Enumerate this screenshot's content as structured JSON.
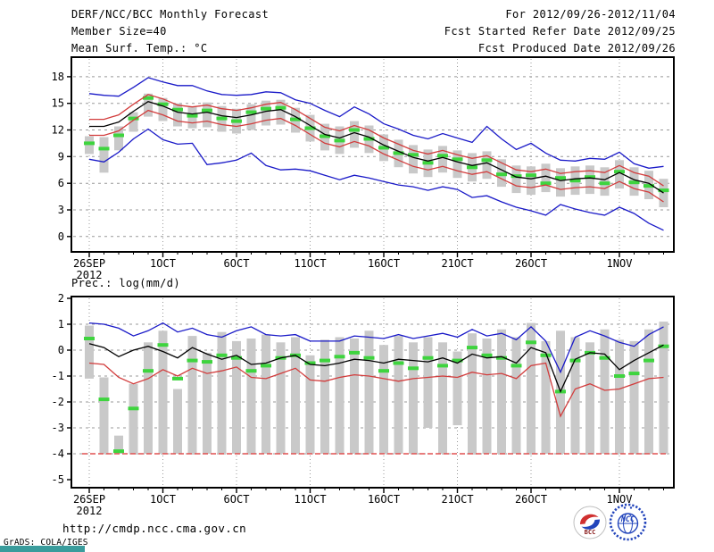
{
  "header": {
    "title": "DERF/NCC/BCC Monthly Forecast",
    "member_size": "Member Size=40",
    "valid_range": "For 2012/09/26-2012/11/04",
    "refer_date": "Fcst Started Refer Date 2012/09/25",
    "produced_date": "Fcst Produced Date 2012/09/26"
  },
  "footer": {
    "url": "http://cmdp.ncc.cma.gov.cn",
    "credit": "GrADS: COLA/IGES"
  },
  "logos": {
    "bcc": "BCC",
    "ncc": "NCC"
  },
  "colors": {
    "black_line": "#000000",
    "red_line": "#d23c3c",
    "blue_line": "#1a1ac8",
    "green_marker": "#3ed43e",
    "bar_gray": "#c9c9c9",
    "grid_gray": "#999999",
    "floor_red": "#e05050",
    "teal_bar": "#3a9c9c",
    "logo_red": "#d03030",
    "logo_blue": "#2244bb",
    "logo_dark_red": "#8b2020"
  },
  "chart_data": [
    {
      "type": "line",
      "name": "temperature",
      "title": "Mean Surf. Temp.: °C",
      "ylabel": "°C",
      "ylim": [
        0,
        18
      ],
      "yticks": [
        0,
        3,
        6,
        9,
        12,
        15,
        18
      ],
      "ygrid": [
        0,
        3,
        6,
        9,
        12,
        15,
        18
      ],
      "n_days": 40,
      "x_sub_label": "2012",
      "xticks": [
        {
          "day": 1,
          "label": "26SEP"
        },
        {
          "day": 6,
          "label": "1OCT"
        },
        {
          "day": 11,
          "label": "6OCT"
        },
        {
          "day": 16,
          "label": "11OCT"
        },
        {
          "day": 21,
          "label": "16OCT"
        },
        {
          "day": 26,
          "label": "21OCT"
        },
        {
          "day": 31,
          "label": "26OCT"
        },
        {
          "day": 37,
          "label": "1NOV"
        }
      ],
      "series": [
        {
          "name": "ensemble-min",
          "color": "blue_line",
          "values": [
            8.7,
            8.4,
            9.5,
            11.0,
            12.1,
            10.9,
            10.4,
            10.5,
            8.1,
            8.3,
            8.6,
            9.4,
            8.0,
            7.5,
            7.6,
            7.4,
            6.9,
            6.4,
            6.9,
            6.6,
            6.2,
            5.8,
            5.6,
            5.2,
            5.6,
            5.3,
            4.4,
            4.6,
            3.9,
            3.3,
            2.9,
            2.4,
            3.6,
            3.1,
            2.7,
            2.4,
            3.3,
            2.6,
            1.5,
            0.7
          ]
        },
        {
          "name": "ensemble-max",
          "color": "blue_line",
          "values": [
            16.1,
            15.9,
            15.8,
            16.8,
            17.9,
            17.4,
            17.0,
            17.0,
            16.4,
            16.0,
            15.9,
            16.0,
            16.3,
            16.2,
            15.4,
            15.0,
            14.2,
            13.5,
            14.6,
            13.8,
            12.7,
            12.1,
            11.4,
            11.0,
            11.6,
            11.1,
            10.6,
            12.4,
            11.0,
            9.8,
            10.5,
            9.4,
            8.6,
            8.5,
            8.8,
            8.7,
            9.5,
            8.2,
            7.7,
            7.9
          ]
        },
        {
          "name": "minus-spread",
          "color": "red_line",
          "values": [
            11.4,
            11.4,
            11.9,
            13.1,
            14.2,
            13.7,
            13.0,
            12.8,
            13.0,
            12.6,
            12.4,
            12.7,
            13.1,
            13.3,
            12.5,
            11.5,
            10.5,
            10.1,
            10.7,
            10.2,
            9.3,
            8.6,
            7.9,
            7.5,
            7.9,
            7.4,
            7.0,
            7.3,
            6.5,
            5.7,
            5.5,
            5.8,
            5.3,
            5.5,
            5.6,
            5.4,
            6.2,
            5.4,
            5.0,
            3.9
          ]
        },
        {
          "name": "plus-spread",
          "color": "red_line",
          "values": [
            13.2,
            13.2,
            13.7,
            14.9,
            16.0,
            15.5,
            14.8,
            14.6,
            14.8,
            14.4,
            14.2,
            14.5,
            14.9,
            15.1,
            14.3,
            13.3,
            12.3,
            11.9,
            12.5,
            12.0,
            11.1,
            10.4,
            9.7,
            9.3,
            9.7,
            9.2,
            8.8,
            9.1,
            8.3,
            7.5,
            7.3,
            7.6,
            7.1,
            7.3,
            7.4,
            7.2,
            8.0,
            7.2,
            6.8,
            5.7
          ]
        },
        {
          "name": "ensemble-mean",
          "color": "black_line",
          "values": [
            12.4,
            12.4,
            12.9,
            14.1,
            15.2,
            14.7,
            14.0,
            13.8,
            14.0,
            13.6,
            13.4,
            13.7,
            14.1,
            14.3,
            13.5,
            12.5,
            11.5,
            11.1,
            11.7,
            11.2,
            10.3,
            9.6,
            8.9,
            8.5,
            8.9,
            8.4,
            8.0,
            8.3,
            7.5,
            6.7,
            6.5,
            6.8,
            6.3,
            6.5,
            6.6,
            6.4,
            7.2,
            6.4,
            6.0,
            4.9
          ]
        }
      ],
      "spread_bars": {
        "high": [
          11.3,
          11.2,
          12.4,
          14.0,
          16.1,
          15.6,
          15.0,
          14.6,
          15.1,
          14.7,
          14.4,
          14.9,
          15.3,
          15.4,
          14.5,
          13.7,
          12.7,
          12.4,
          13.0,
          12.5,
          11.5,
          10.9,
          10.3,
          9.8,
          10.2,
          9.7,
          9.4,
          9.6,
          8.7,
          8.0,
          7.9,
          8.2,
          7.7,
          7.9,
          8.0,
          7.8,
          8.6,
          7.8,
          7.4,
          6.5
        ],
        "low": [
          9.3,
          7.2,
          9.7,
          11.8,
          13.5,
          13.0,
          12.4,
          12.2,
          12.3,
          11.8,
          11.6,
          12.0,
          12.5,
          12.6,
          11.7,
          10.7,
          9.7,
          9.3,
          10.0,
          9.4,
          8.5,
          7.8,
          7.1,
          6.7,
          7.2,
          6.6,
          6.2,
          6.5,
          5.6,
          4.9,
          4.7,
          5.0,
          4.5,
          4.7,
          4.8,
          4.6,
          5.4,
          4.6,
          4.2,
          3.3
        ]
      },
      "obs_markers": [
        10.5,
        9.9,
        11.4,
        13.3,
        15.6,
        14.9,
        14.3,
        13.6,
        14.2,
        13.3,
        13.0,
        14.0,
        14.4,
        14.5,
        13.2,
        12.2,
        11.3,
        10.8,
        12.0,
        11.0,
        10.0,
        9.4,
        9.2,
        8.3,
        9.1,
        8.7,
        7.8,
        8.6,
        7.0,
        6.8,
        6.9,
        6.0,
        6.6,
        6.3,
        6.7,
        6.0,
        7.3,
        6.1,
        5.7,
        5.2
      ],
      "floor_line_value": null
    },
    {
      "type": "line",
      "name": "precipitation",
      "title": "Prec.: log(mm/d)",
      "ylabel": "log(mm/d)",
      "ylim": [
        -5,
        2
      ],
      "yticks": [
        2,
        1,
        0,
        -1,
        -2,
        -3,
        -4,
        -5
      ],
      "ygrid": [
        1,
        0,
        -1,
        -2,
        -3,
        -4
      ],
      "n_days": 40,
      "x_sub_label": "2012",
      "xticks": [
        {
          "day": 1,
          "label": "26SEP"
        },
        {
          "day": 6,
          "label": "1OCT"
        },
        {
          "day": 11,
          "label": "6OCT"
        },
        {
          "day": 16,
          "label": "11OCT"
        },
        {
          "day": 21,
          "label": "16OCT"
        },
        {
          "day": 26,
          "label": "21OCT"
        },
        {
          "day": 31,
          "label": "26OCT"
        },
        {
          "day": 37,
          "label": "1NOV"
        }
      ],
      "series": [
        {
          "name": "ensemble-max",
          "color": "blue_line",
          "values": [
            1.05,
            1.0,
            0.85,
            0.55,
            0.75,
            1.05,
            0.7,
            0.85,
            0.6,
            0.5,
            0.75,
            0.9,
            0.6,
            0.55,
            0.6,
            0.35,
            0.35,
            0.35,
            0.55,
            0.5,
            0.45,
            0.6,
            0.45,
            0.55,
            0.65,
            0.5,
            0.8,
            0.55,
            0.65,
            0.4,
            0.9,
            0.35,
            -0.85,
            0.5,
            0.75,
            0.55,
            0.3,
            0.15,
            0.6,
            0.9
          ]
        },
        {
          "name": "minus-spread",
          "color": "red_line",
          "values": [
            -0.5,
            -0.55,
            -1.05,
            -1.3,
            -1.1,
            -0.75,
            -1.0,
            -0.7,
            -0.9,
            -0.8,
            -0.65,
            -1.05,
            -1.1,
            -0.9,
            -0.7,
            -1.15,
            -1.2,
            -1.05,
            -0.95,
            -1.0,
            -1.1,
            -1.2,
            -1.1,
            -1.05,
            -1.0,
            -1.05,
            -0.85,
            -0.95,
            -0.9,
            -1.1,
            -0.6,
            -0.5,
            -2.55,
            -1.5,
            -1.3,
            -1.55,
            -1.5,
            -1.3,
            -1.1,
            -1.05
          ]
        },
        {
          "name": "ensemble-mean",
          "color": "black_line",
          "values": [
            0.25,
            0.1,
            -0.25,
            0.0,
            0.15,
            -0.05,
            -0.3,
            0.1,
            -0.15,
            -0.35,
            -0.2,
            -0.55,
            -0.5,
            -0.3,
            -0.2,
            -0.55,
            -0.6,
            -0.5,
            -0.35,
            -0.4,
            -0.5,
            -0.35,
            -0.4,
            -0.45,
            -0.3,
            -0.5,
            -0.15,
            -0.3,
            -0.25,
            -0.5,
            0.1,
            -0.1,
            -1.6,
            -0.35,
            -0.1,
            -0.15,
            -0.75,
            -0.4,
            -0.1,
            0.2
          ]
        }
      ],
      "spread_bars": {
        "high": [
          0.95,
          -1.05,
          -3.3,
          -1.3,
          0.3,
          0.75,
          -1.5,
          0.55,
          -0.1,
          0.7,
          0.35,
          0.45,
          0.6,
          0.3,
          0.5,
          -0.2,
          0.4,
          0.5,
          0.45,
          0.75,
          0.2,
          0.55,
          0.3,
          0.5,
          0.3,
          -0.05,
          0.65,
          0.45,
          0.8,
          0.5,
          1.05,
          0.35,
          0.75,
          0.5,
          0.3,
          0.8,
          0.4,
          0.35,
          0.8,
          1.1
        ],
        "low": [
          -1.1,
          -4,
          -4,
          -4,
          -4,
          -4,
          -4,
          -4,
          -4,
          -4,
          -4,
          -4,
          -4,
          -4,
          -4,
          -4,
          -4,
          -4,
          -4,
          -4,
          -4,
          -4,
          -4,
          -3.0,
          -4,
          -2.9,
          -4,
          -4,
          -4,
          -4,
          -4,
          -4,
          -4,
          -4,
          -4,
          -4,
          -4,
          -4,
          -4,
          -4
        ]
      },
      "obs_markers": [
        0.45,
        -1.9,
        -3.9,
        -2.25,
        -0.8,
        0.2,
        -1.1,
        -0.4,
        -0.45,
        -0.2,
        -0.3,
        -0.8,
        -0.6,
        -0.3,
        -0.2,
        -0.5,
        -0.4,
        -0.25,
        -0.1,
        -0.3,
        -0.8,
        -0.5,
        -0.7,
        -0.3,
        -0.6,
        -0.4,
        0.1,
        -0.2,
        -0.3,
        -0.6,
        0.3,
        -0.2,
        -1.6,
        -0.4,
        -0.1,
        -0.3,
        -1.0,
        -0.9,
        -0.4,
        0.15
      ],
      "floor_line_value": -4
    }
  ]
}
